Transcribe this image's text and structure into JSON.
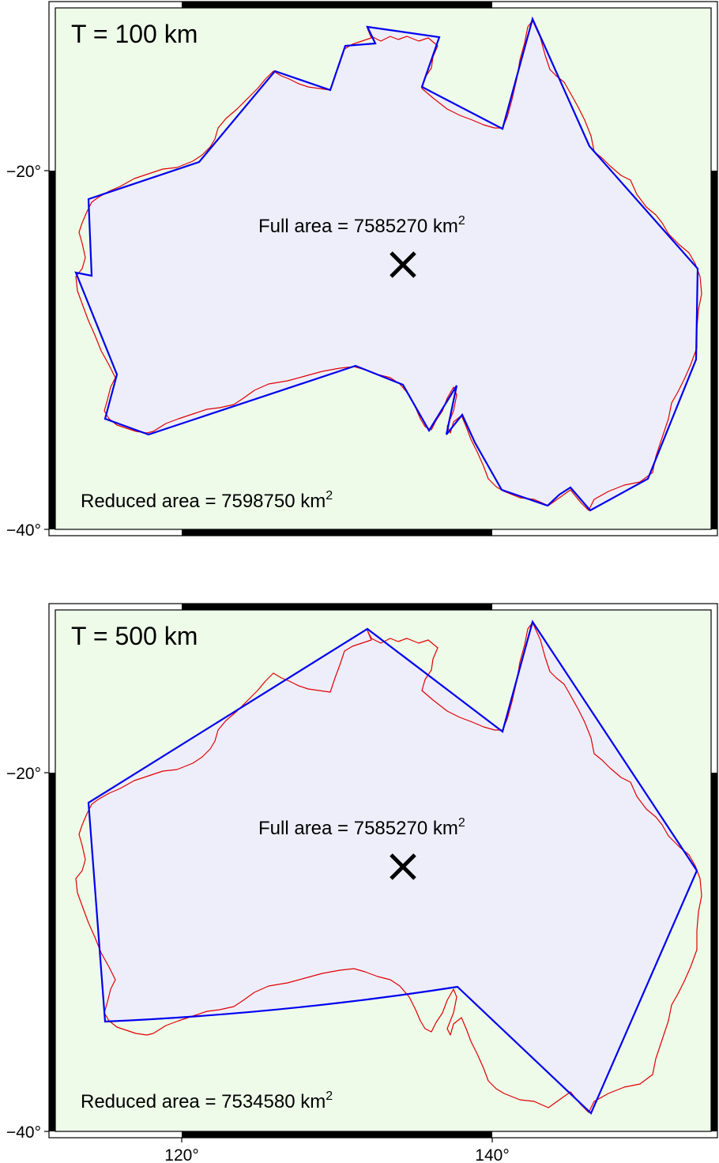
{
  "panels": [
    {
      "title": "T = 100 km",
      "full_area_label": "Full area = 7585270 km",
      "full_area_sup": "2",
      "reduced_area_label": "Reduced area = 7598750 km",
      "reduced_area_sup": "2",
      "lat_ticks": [
        "−20°",
        "−40°"
      ]
    },
    {
      "title": "T = 500 km",
      "full_area_label": "Full area = 7585270 km",
      "full_area_sup": "2",
      "reduced_area_label": "Reduced area = 7534580 km",
      "reduced_area_sup": "2",
      "lat_ticks": [
        "−20°",
        "−40°"
      ],
      "lon_ticks": [
        "120°",
        "140°"
      ]
    }
  ],
  "colors": {
    "map_background": "#eefbe9",
    "polygon_fill": "#eeeefb",
    "coastline": "#e00000",
    "simplified_outline": "#0000ee",
    "frame": "#000000"
  },
  "icons": {
    "centroid_marker": "x-mark-icon"
  }
}
